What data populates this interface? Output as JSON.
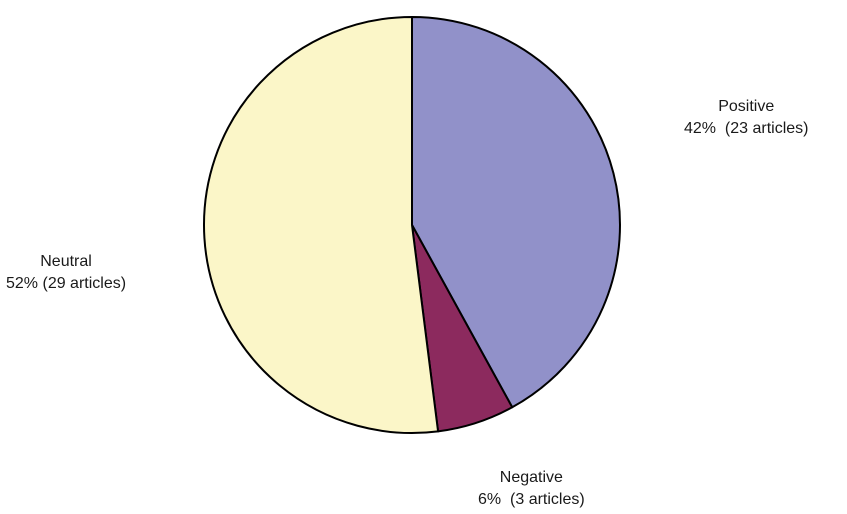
{
  "chart_data": {
    "type": "pie",
    "title": "",
    "slices": [
      {
        "name": "Positive",
        "percent": 42,
        "pct_label": "42%",
        "count_label": "(23 articles)",
        "color": "#9191c9"
      },
      {
        "name": "Negative",
        "percent": 6,
        "pct_label": "6%",
        "count_label": "(3 articles)",
        "color": "#8c2a5e"
      },
      {
        "name": "Neutral",
        "percent": 52,
        "pct_label": "52%",
        "count_label": "(29 articles)",
        "color": "#fbf6c8"
      }
    ],
    "start": "12 o'clock",
    "direction": "clockwise",
    "legend": "none"
  }
}
